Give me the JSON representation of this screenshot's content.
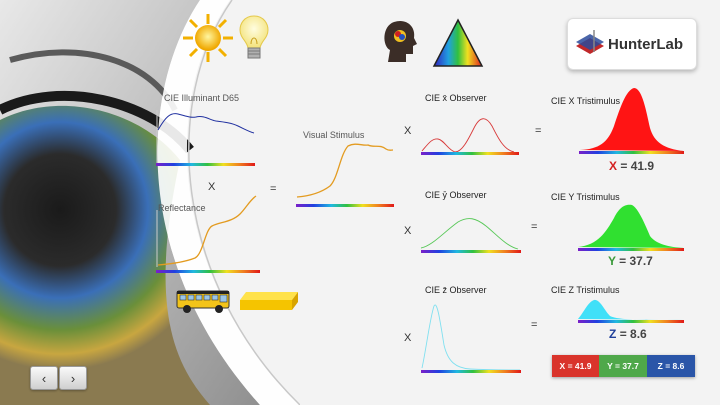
{
  "nav": {
    "prev_icon": "chevron-left-icon",
    "next_icon": "chevron-right-icon"
  },
  "logo": {
    "text": "HunterLab"
  },
  "labels": {
    "illuminant": "CIE Illuminant D65",
    "reflectance": "Reflectance",
    "visual_stimulus": "Visual Stimulus",
    "x_observer": "CIE x̄ Observer",
    "y_observer": "CIE ȳ Observer",
    "z_observer": "CIE z̄ Observer",
    "x_tristimulus": "CIE X Tristimulus",
    "y_tristimulus": "CIE Y Tristimulus",
    "z_tristimulus": "CIE Z Tristimulus"
  },
  "operators": {
    "times": "X",
    "equals": "="
  },
  "results": {
    "X": {
      "letter": "X",
      "value": "= 41.9",
      "color": "#d42020"
    },
    "Y": {
      "letter": "Y",
      "value": "= 37.7",
      "color": "#3a9a3a"
    },
    "Z": {
      "letter": "Z",
      "value": "= 8.6",
      "color": "#1f3f9a"
    }
  },
  "summary": [
    {
      "text": "X = 41.9",
      "color": "#d9342b"
    },
    {
      "text": "Y = 37.7",
      "color": "#4fa84a"
    },
    {
      "text": "Z = 8.6",
      "color": "#2a55a8"
    }
  ],
  "icons": [
    "sun-icon",
    "light-bulb-icon",
    "head-icon",
    "color-triangle-icon",
    "school-bus-icon",
    "yellow-block-icon",
    "eye-photo"
  ]
}
